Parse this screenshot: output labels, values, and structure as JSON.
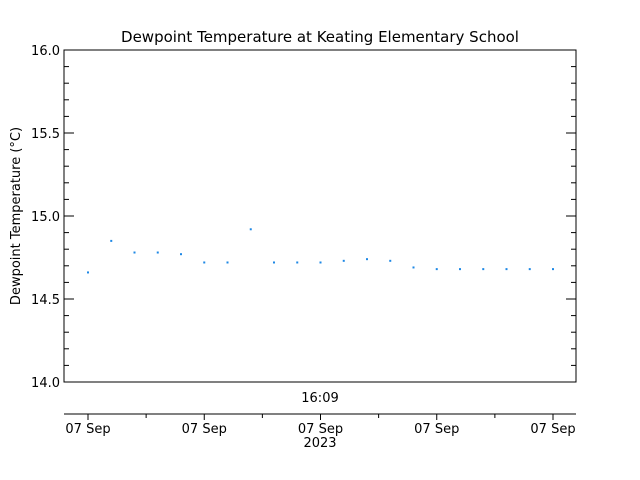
{
  "chart_data": {
    "type": "scatter",
    "title": "Dewpoint Temperature at Keating Elementary School",
    "ylabel": "Dewpoint Temperature (°C)",
    "ylim": [
      14.0,
      16.0
    ],
    "yticks": [
      "14.0",
      "14.5",
      "15.0",
      "15.5",
      "16.0"
    ],
    "time_label": "16:09",
    "year_label": "2023",
    "xtick_labels": [
      "07 Sep",
      "07 Sep",
      "07 Sep",
      "07 Sep",
      "07 Sep"
    ],
    "series": [
      {
        "values": [
          14.66,
          14.85,
          14.78,
          14.78,
          14.77,
          14.72,
          14.72,
          14.92,
          14.72,
          14.72,
          14.72,
          14.73,
          14.74,
          14.73,
          14.69,
          14.68,
          14.68,
          14.68,
          14.68,
          14.68,
          14.68
        ]
      }
    ],
    "point_color": "#1e88e5",
    "grid": false
  }
}
